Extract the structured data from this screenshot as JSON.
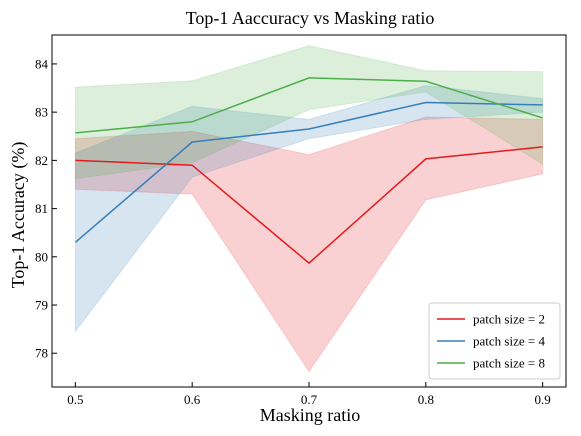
{
  "chart_data": {
    "type": "line",
    "title": "Top-1 Aaccuracy vs Masking ratio",
    "xlabel": "Masking ratio",
    "ylabel": "Top-1 Accuracy (%)",
    "x": [
      0.5,
      0.6,
      0.7,
      0.8,
      0.9
    ],
    "x_tick_labels": [
      "0.5",
      "0.6",
      "0.7",
      "0.8",
      "0.9"
    ],
    "xlim": [
      0.48,
      0.92
    ],
    "ylim": [
      77.3,
      84.6
    ],
    "yticks": [
      78,
      79,
      80,
      81,
      82,
      83,
      84
    ],
    "grid": false,
    "legend_position": "lower-right",
    "series": [
      {
        "name": "patch size = 2",
        "color": "#e41a1c",
        "values": [
          82.0,
          81.9,
          79.87,
          82.03,
          82.28
        ],
        "upper": [
          82.45,
          82.6,
          82.12,
          82.9,
          82.85
        ],
        "lower": [
          81.4,
          81.3,
          77.62,
          81.18,
          81.72
        ]
      },
      {
        "name": "patch size = 4",
        "color": "#377eb8",
        "values": [
          80.3,
          82.38,
          82.65,
          83.2,
          83.15
        ],
        "upper": [
          82.15,
          83.12,
          82.85,
          83.55,
          83.28
        ],
        "lower": [
          78.45,
          81.65,
          82.45,
          82.85,
          83.0
        ]
      },
      {
        "name": "patch size = 8",
        "color": "#4daf4a",
        "values": [
          82.57,
          82.8,
          83.71,
          83.64,
          82.88
        ],
        "upper": [
          83.52,
          83.65,
          84.38,
          83.86,
          83.84
        ],
        "lower": [
          81.62,
          81.95,
          83.05,
          83.42,
          81.92
        ]
      }
    ]
  }
}
